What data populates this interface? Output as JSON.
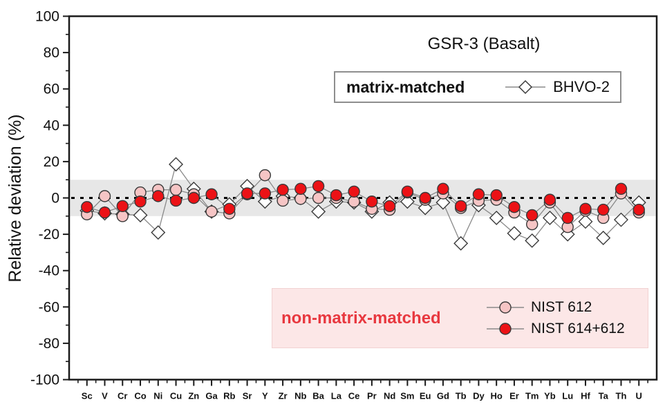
{
  "chart_data": {
    "type": "line",
    "title": "GSR-3 (Basalt)",
    "ylabel": "Relative deviation (%)",
    "xlabel": "",
    "ylim": [
      -100,
      100
    ],
    "yticks": [
      100,
      80,
      60,
      40,
      20,
      0,
      -20,
      -40,
      -60,
      -80,
      -100
    ],
    "ytick_minor_step": 10,
    "grid": false,
    "zero_line_dashed": true,
    "band": {
      "min": -10,
      "max": 10
    },
    "categories": [
      "Sc",
      "V",
      "Cr",
      "Co",
      "Ni",
      "Cu",
      "Zn",
      "Ga",
      "Rb",
      "Sr",
      "Y",
      "Zr",
      "Nb",
      "Ba",
      "La",
      "Ce",
      "Pr",
      "Nd",
      "Sm",
      "Eu",
      "Gd",
      "Tb",
      "Dy",
      "Ho",
      "Er",
      "Tm",
      "Yb",
      "Lu",
      "Hf",
      "Ta",
      "Th",
      "U"
    ],
    "series": [
      {
        "name": "BHVO-2",
        "marker": "diamond",
        "fill": "#ffffff",
        "values": [
          -7,
          -8.5,
          -9,
          -9.5,
          -19,
          18.5,
          5,
          -7.5,
          -3.5,
          6.5,
          -2,
          1,
          0,
          -7.5,
          -2,
          -2.5,
          -7.5,
          -2.5,
          -2,
          -5.5,
          -2.5,
          -25,
          -4,
          -11,
          -19.5,
          -23.5,
          -11,
          -20,
          -13,
          -22,
          -12,
          -2.5
        ]
      },
      {
        "name": "NIST 612",
        "marker": "circle",
        "fill": "#f6c5c5",
        "values": [
          -9,
          1,
          -10,
          3,
          4.5,
          4.5,
          2,
          -7.5,
          -8.5,
          2,
          12.5,
          -1.5,
          -0.5,
          0,
          0,
          -2,
          -6,
          -6.5,
          3,
          -1,
          2.5,
          -5.5,
          -1.5,
          -1,
          -8,
          -14.5,
          -2.5,
          -16,
          -7,
          -11,
          2.5,
          -8
        ]
      },
      {
        "name": "NIST 614+612",
        "marker": "circle",
        "fill": "#ec1216",
        "values": [
          -5,
          -8,
          -4.5,
          -2,
          1,
          -1.5,
          0,
          2,
          -6,
          2.5,
          2.5,
          4.5,
          5,
          6.5,
          1.5,
          3.5,
          -2,
          -4.5,
          3.5,
          0,
          5,
          -4.5,
          2,
          1.5,
          -5,
          -9.5,
          -1,
          -11,
          -6,
          -6.5,
          5,
          -6.5
        ]
      }
    ],
    "legend_position": "top-right-box and bottom-center-box"
  },
  "legend_top": {
    "label": "matrix-matched",
    "series": "BHVO-2"
  },
  "legend_bottom": {
    "label": "non-matrix-matched",
    "entries": [
      "NIST 612",
      "NIST 614+612"
    ]
  },
  "colors": {
    "nist_612_pink": "#f6c5c5",
    "nist_614_612_red": "#ec1216",
    "bhvo2_fill": "#ffffff",
    "marker_stroke": "#3a3a3a",
    "series_line": "#8a8a8a",
    "band_gray": "#e7e7e7",
    "zero_line": "#000000",
    "legend_bottom_bg": "#fce7e7",
    "legend_bottom_text": "#e8383f",
    "axis": "#1a1a1a"
  }
}
